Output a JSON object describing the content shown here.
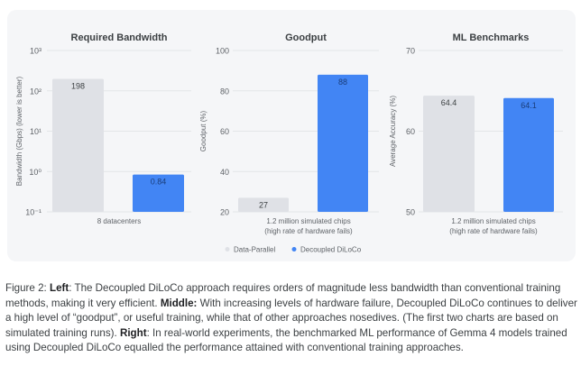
{
  "chart_data": [
    {
      "type": "bar",
      "title": "Required Bandwidth",
      "ylabel": "Bandwidth (Gbps) (lower is better)",
      "yscale": "log",
      "ylim": [
        0.1,
        1000
      ],
      "yticks": [
        0.1,
        1,
        10,
        100,
        1000
      ],
      "ytick_labels": [
        "10⁻¹",
        "10⁰",
        "10¹",
        "10²",
        "10³"
      ],
      "categories": [
        "8 datacenters"
      ],
      "category_lines": [
        [
          "8 datacenters"
        ]
      ],
      "series": [
        {
          "name": "Data-Parallel",
          "values": [
            198
          ],
          "labels": [
            "198"
          ]
        },
        {
          "name": "Decoupled DiLoCo",
          "values": [
            0.84
          ],
          "labels": [
            "0.84"
          ]
        }
      ],
      "grid": true
    },
    {
      "type": "bar",
      "title": "Goodput",
      "ylabel": "Goodput (%)",
      "yscale": "linear",
      "ylim": [
        20,
        100
      ],
      "yticks": [
        20,
        40,
        60,
        80,
        100
      ],
      "ytick_labels": [
        "20",
        "40",
        "60",
        "80",
        "100"
      ],
      "categories": [
        "1.2 million simulated chips (high rate of hardware fails)"
      ],
      "category_lines": [
        [
          "1.2 million simulated chips",
          "(high rate of hardware fails)"
        ]
      ],
      "series": [
        {
          "name": "Data-Parallel",
          "values": [
            27
          ],
          "labels": [
            "27"
          ]
        },
        {
          "name": "Decoupled DiLoCo",
          "values": [
            88
          ],
          "labels": [
            "88"
          ]
        }
      ],
      "grid": true
    },
    {
      "type": "bar",
      "title": "ML Benchmarks",
      "ylabel": "Average Accuracy (%)",
      "yscale": "linear",
      "ylim": [
        50,
        70
      ],
      "yticks": [
        50,
        60,
        70
      ],
      "ytick_labels": [
        "50",
        "60",
        "70"
      ],
      "categories": [
        "1.2 million simulated chips (high rate of hardware fails)"
      ],
      "category_lines": [
        [
          "1.2 million simulated chips",
          "(high rate of hardware fails)"
        ]
      ],
      "series": [
        {
          "name": "Data-Parallel",
          "values": [
            64.4
          ],
          "labels": [
            "64.4"
          ]
        },
        {
          "name": "Decoupled DiLoCo",
          "values": [
            64.1
          ],
          "labels": [
            "64.1"
          ]
        }
      ],
      "grid": true
    }
  ],
  "legend": {
    "placement": "bottom-center",
    "items": [
      {
        "label": "Data-Parallel",
        "color": "#dfe1e6"
      },
      {
        "label": "Decoupled DiLoCo",
        "color": "#4285f4"
      }
    ]
  },
  "colors": {
    "data_parallel": "#dfe1e6",
    "decoupled_diloco": "#4285f4",
    "grid": "#e3e5e8"
  },
  "caption": {
    "prefix": "Figure 2: ",
    "left_label": "Left",
    "left_text": ": The Decoupled DiLoCo approach requires orders of magnitude less bandwidth than conventional training methods, making it very efficient. ",
    "middle_label": "Middle:",
    "middle_text": " With increasing levels of hardware failure, Decoupled DiLoCo continues to deliver a high level of “goodput”, or useful training, while that of other approaches nosedives. (The first two charts are based on simulated training runs). ",
    "right_label": "Right",
    "right_text": ": In real-world experiments, the benchmarked ML performance of Gemma 4 models trained using Decoupled DiLoCo equalled the performance attained with conventional training approaches."
  }
}
